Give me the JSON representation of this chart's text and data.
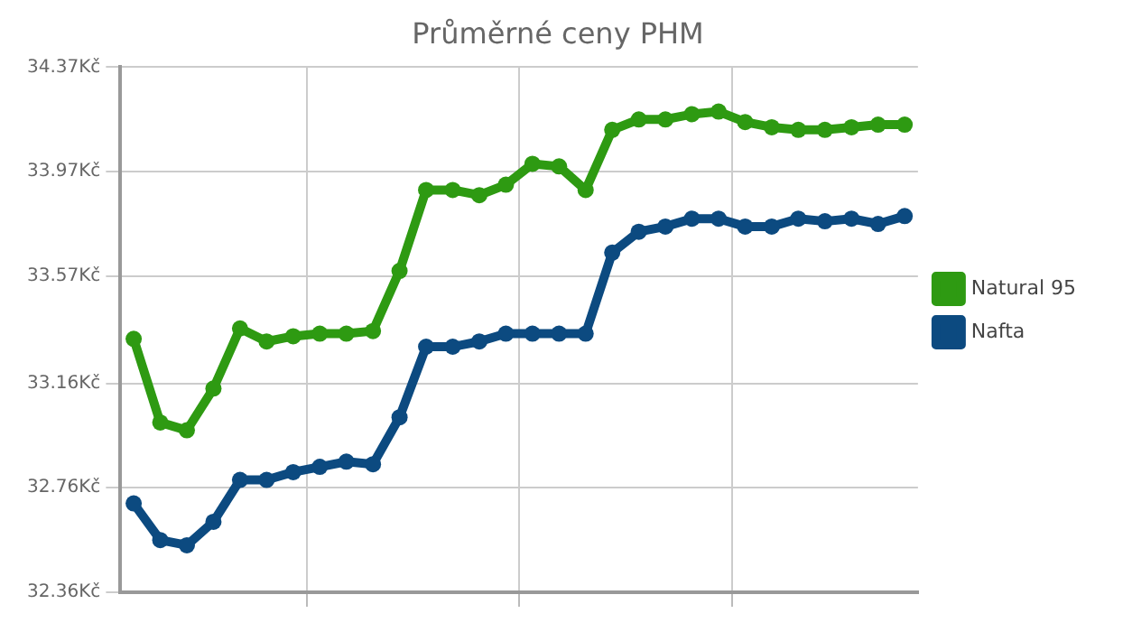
{
  "chart_data": {
    "type": "line",
    "title": "Průměrné ceny PHM",
    "categories": [
      null,
      null,
      null,
      null,
      null,
      null,
      null,
      null,
      null,
      null,
      null,
      null,
      null,
      null,
      null,
      null,
      null,
      null,
      null,
      null,
      null,
      null,
      null,
      null,
      null,
      null,
      null,
      null,
      null,
      null
    ],
    "series": [
      {
        "name": "Natural 95",
        "color": "#2e9a12",
        "values": [
          33.33,
          33.01,
          32.98,
          33.14,
          33.37,
          33.32,
          33.34,
          33.35,
          33.35,
          33.36,
          33.59,
          33.9,
          33.9,
          33.88,
          33.92,
          34.0,
          33.99,
          33.9,
          34.13,
          34.17,
          34.17,
          34.19,
          34.2,
          34.16,
          34.14,
          34.13,
          34.13,
          34.14,
          34.15,
          34.15
        ]
      },
      {
        "name": "Nafta",
        "color": "#0c4a80",
        "values": [
          32.7,
          32.56,
          32.54,
          32.63,
          32.79,
          32.79,
          32.82,
          32.84,
          32.86,
          32.85,
          33.03,
          33.3,
          33.3,
          33.32,
          33.35,
          33.35,
          33.35,
          33.35,
          33.66,
          33.74,
          33.76,
          33.79,
          33.79,
          33.76,
          33.76,
          33.79,
          33.78,
          33.79,
          33.77,
          33.8
        ]
      }
    ],
    "ylim": [
      32.36,
      34.37
    ],
    "yticks": [
      {
        "value": 32.36,
        "label": "32.36Kč"
      },
      {
        "value": 32.76,
        "label": "32.76Kč"
      },
      {
        "value": 33.16,
        "label": "33.16Kč"
      },
      {
        "value": 33.57,
        "label": "33.57Kč"
      },
      {
        "value": 33.97,
        "label": "33.97Kč"
      },
      {
        "value": 34.37,
        "label": "34.37Kč"
      }
    ],
    "grid": true,
    "legend": "right",
    "marker": "circle",
    "line_style": "solid"
  }
}
